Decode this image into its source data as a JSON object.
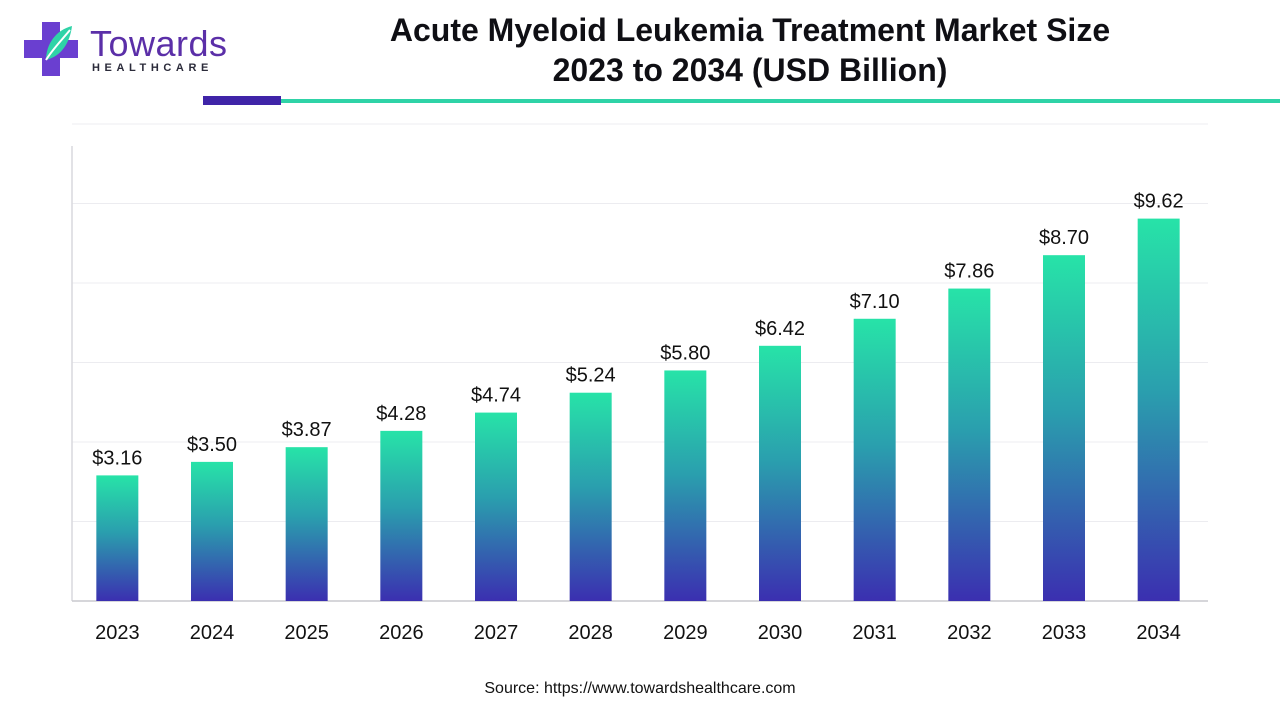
{
  "header": {
    "logo_name": "Towards",
    "logo_sub": "HEALTHCARE",
    "title_line1": "Acute Myeloid Leukemia Treatment Market Size",
    "title_line2": "2023 to 2034 (USD Billion)"
  },
  "footer": {
    "source": "Source: https://www.towardshealthcare.com"
  },
  "colors": {
    "brand_purple": "#5b2fa8",
    "accent_dark": "#3f24a8",
    "accent_teal": "#2fd3a7",
    "bar_top": "#27e3a8",
    "bar_mid": "#2a8fb0",
    "bar_bottom": "#3b2fb0"
  },
  "chart_data": {
    "type": "bar",
    "title": "Acute Myeloid Leukemia Treatment Market Size 2023 to 2034 (USD Billion)",
    "xlabel": "",
    "ylabel": "",
    "ylim": [
      0,
      12
    ],
    "grid": true,
    "categories": [
      "2023",
      "2024",
      "2025",
      "2026",
      "2027",
      "2028",
      "2029",
      "2030",
      "2031",
      "2032",
      "2033",
      "2034"
    ],
    "values": [
      3.16,
      3.5,
      3.87,
      4.28,
      4.74,
      5.24,
      5.8,
      6.42,
      7.1,
      7.86,
      8.7,
      9.62
    ],
    "labels": [
      "$3.16",
      "$3.50",
      "$3.87",
      "$4.28",
      "$4.74",
      "$5.24",
      "$5.80",
      "$6.42",
      "$7.10",
      "$7.86",
      "$8.70",
      "$9.62"
    ]
  }
}
